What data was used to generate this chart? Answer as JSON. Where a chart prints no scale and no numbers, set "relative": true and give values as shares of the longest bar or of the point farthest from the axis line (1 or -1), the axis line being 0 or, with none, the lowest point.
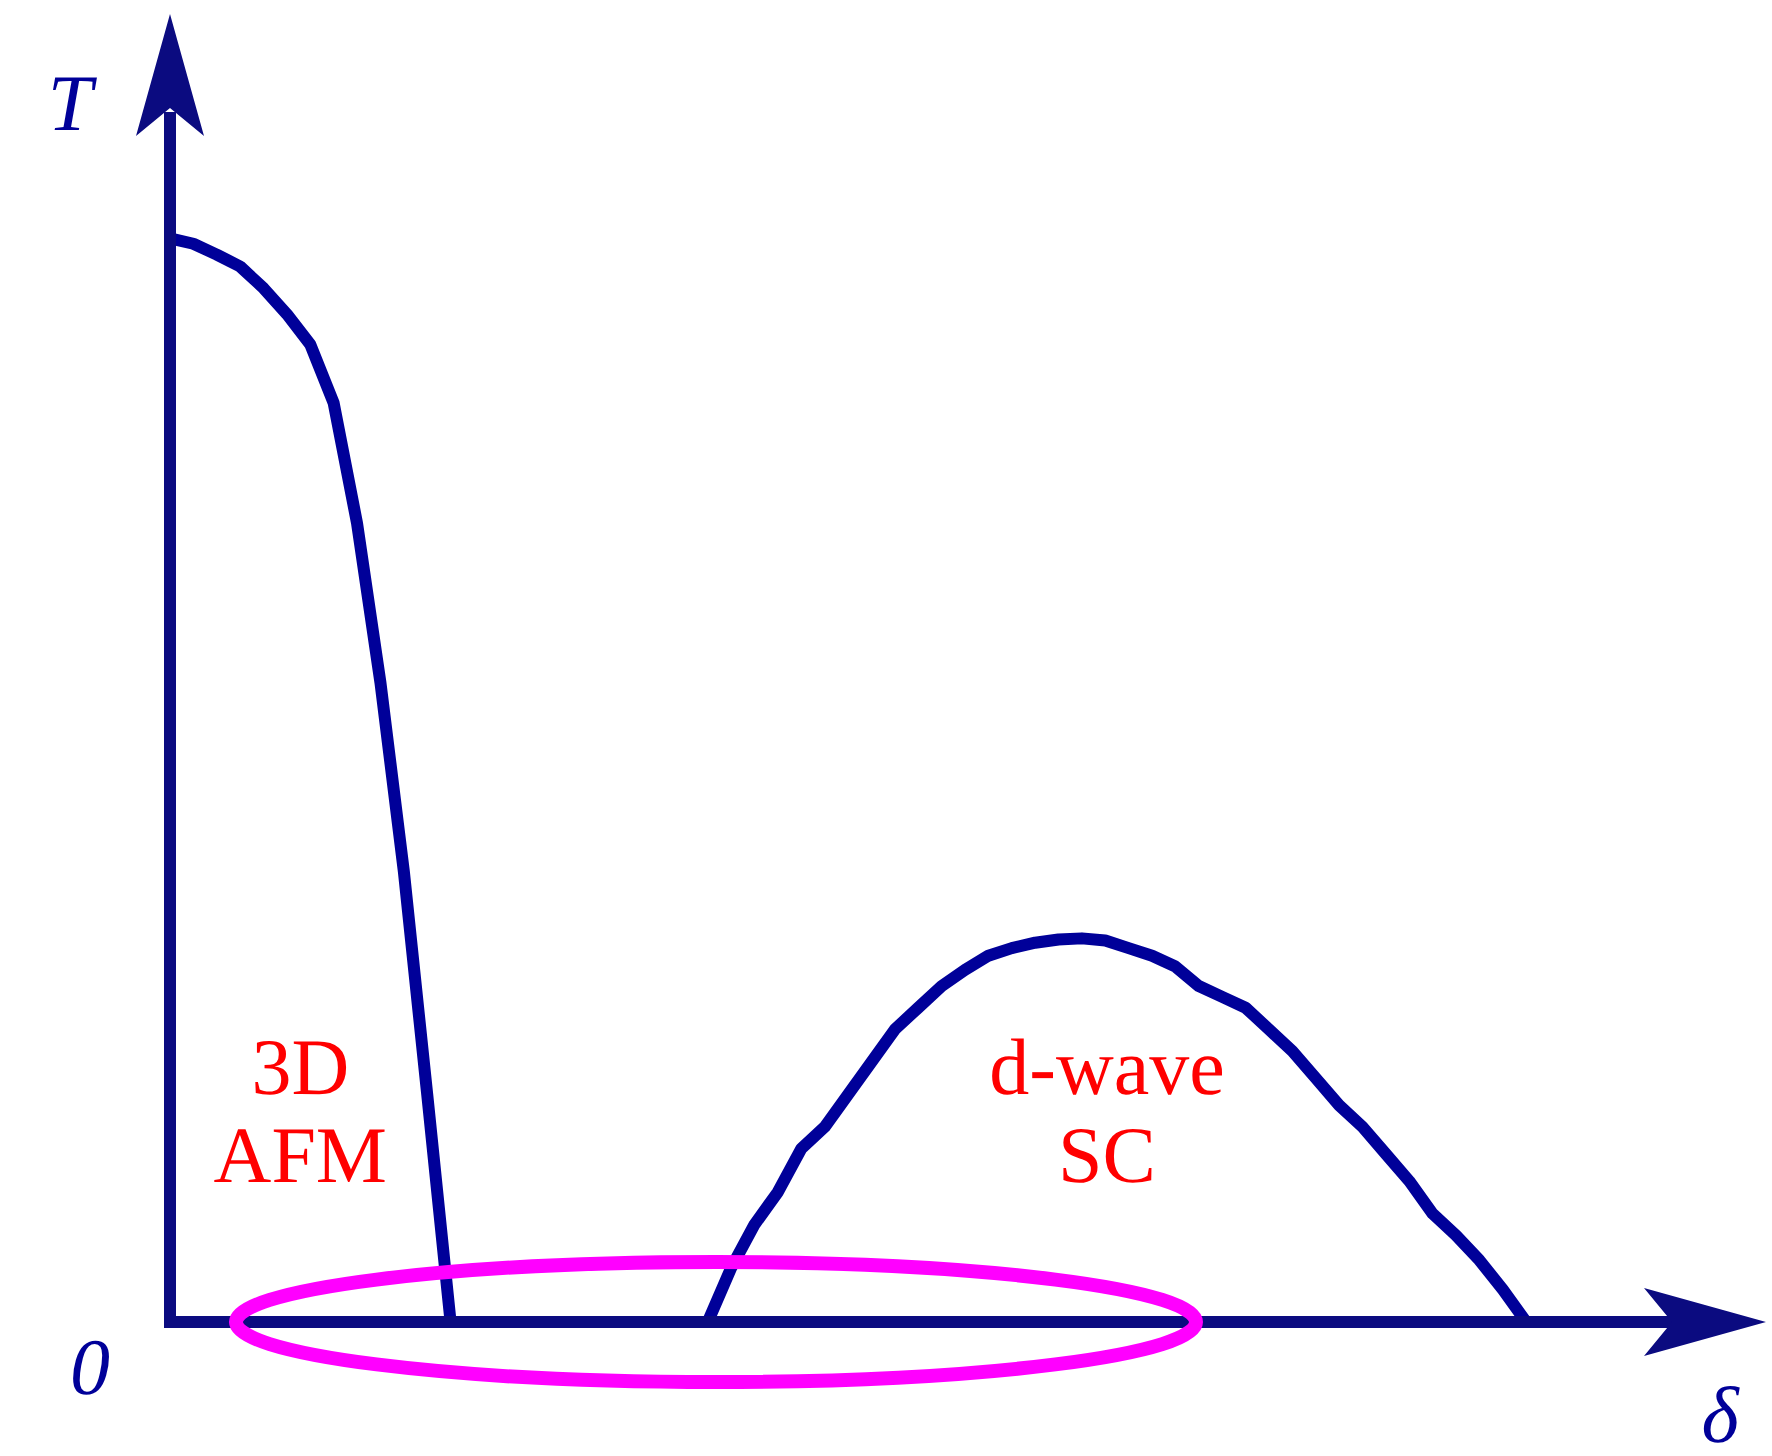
{
  "chart_data": {
    "type": "line",
    "relative": true,
    "xlabel": "δ",
    "ylabel": "T",
    "annotations": [
      "0"
    ],
    "categories": [
      null,
      null,
      null,
      null,
      null,
      null,
      null,
      null,
      null,
      null,
      null,
      null,
      null,
      null,
      null,
      null,
      null,
      null,
      null,
      null,
      null,
      null,
      null,
      null,
      null,
      null,
      null,
      null,
      null,
      null,
      null,
      null,
      null,
      null,
      null,
      null,
      null,
      null,
      null,
      null,
      null,
      null,
      null,
      null,
      null,
      null,
      null,
      null,
      null,
      null,
      null,
      null,
      null,
      null,
      null,
      null,
      null,
      null,
      null,
      null,
      null,
      null,
      null,
      null,
      null,
      null,
      null,
      null,
      null
    ],
    "series": [
      {
        "name": "3D AFM",
        "color": "#000099",
        "values": [
          1,
          0.995,
          0.985,
          0.974,
          0.954,
          0.93,
          0.902,
          0.848,
          0.737,
          0.59,
          0.416,
          0.21,
          0,
          null,
          null,
          null,
          null,
          null,
          null,
          null,
          null,
          null,
          null,
          null,
          null,
          null,
          null,
          null,
          null,
          null,
          null,
          null,
          null,
          null,
          null,
          null,
          null,
          null,
          null,
          null,
          null,
          null,
          null,
          null,
          null,
          null,
          null,
          null,
          null,
          null,
          null,
          null,
          null,
          null,
          null,
          null,
          null,
          null,
          null,
          null,
          null,
          null,
          null,
          null,
          null,
          null,
          null,
          null,
          null
        ]
      },
      {
        "name": "d-wave SC",
        "color": "#000099",
        "values": [
          null,
          null,
          null,
          null,
          null,
          null,
          null,
          null,
          null,
          null,
          null,
          null,
          null,
          null,
          null,
          null,
          null,
          null,
          null,
          null,
          null,
          null,
          null,
          0,
          0.05,
          0.09,
          0.12,
          0.16,
          0.18,
          0.21,
          0.24,
          0.27,
          0.29,
          0.31,
          0.325,
          0.338,
          0.345,
          0.35,
          0.353,
          0.354,
          0.352,
          0.345,
          0.338,
          0.328,
          0.31,
          0.3,
          0.29,
          0.27,
          0.25,
          0.225,
          0.2,
          0.18,
          0.155,
          0.13,
          0.1,
          0.08,
          0.057,
          0.03,
          0,
          null,
          null,
          null,
          null,
          null,
          null,
          null,
          null,
          null,
          null
        ]
      }
    ]
  }
}
